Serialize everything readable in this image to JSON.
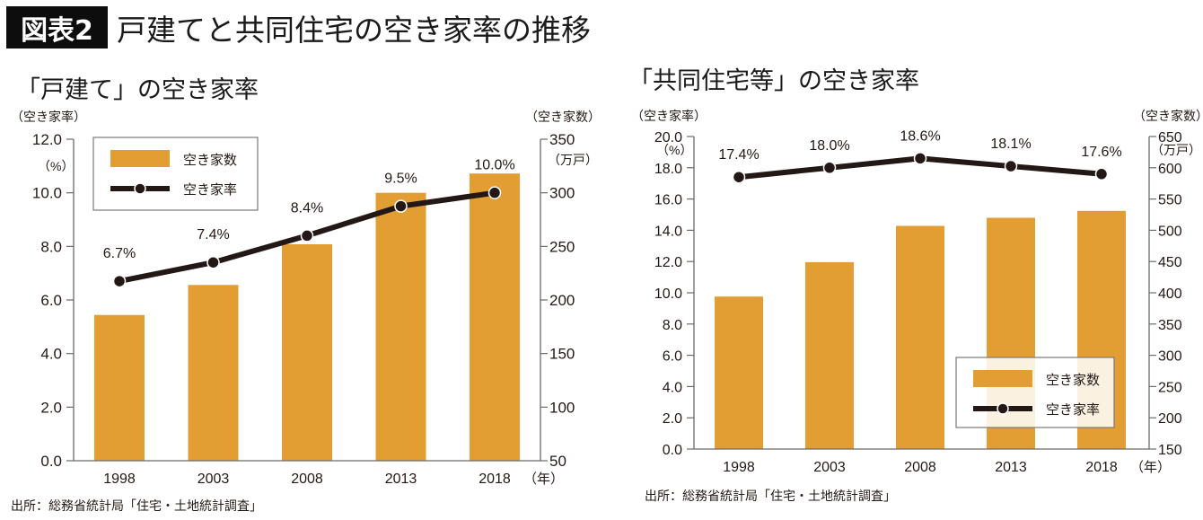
{
  "header": {
    "badge": "図表2",
    "title": "戸建てと共同住宅の空き家率の推移"
  },
  "colors": {
    "bar": "#e29e33",
    "line": "#231815",
    "axis": "#6b6b6b"
  },
  "chart_data": [
    {
      "type": "bar+line",
      "title": "「戸建て」の空き家率",
      "categories": [
        "1998",
        "2003",
        "2008",
        "2013",
        "2018"
      ],
      "xlabel_unit": "（年）",
      "left_axis": {
        "label": "（空き家率）",
        "unit": "（%）",
        "ticks": [
          "0.0",
          "2.0",
          "4.0",
          "6.0",
          "8.0",
          "10.0",
          "12.0"
        ],
        "range": [
          0,
          12
        ]
      },
      "right_axis": {
        "label": "（空き家数）",
        "unit": "（万戸）",
        "ticks": [
          "50",
          "100",
          "150",
          "200",
          "250",
          "300",
          "350"
        ],
        "range": [
          50,
          350
        ]
      },
      "series": [
        {
          "name": "空き家数",
          "type": "bar",
          "axis": "right",
          "values": [
            186,
            214,
            252,
            300,
            318
          ]
        },
        {
          "name": "空き家率",
          "type": "line",
          "axis": "left",
          "values": [
            6.7,
            7.4,
            8.4,
            9.5,
            10.0
          ],
          "labels": [
            "6.7%",
            "7.4%",
            "8.4%",
            "9.5%",
            "10.0%"
          ]
        }
      ],
      "legend": {
        "placement": "top-left",
        "items": [
          "空き家数",
          "空き家率"
        ]
      },
      "source": "出所：総務省統計局「住宅・土地統計調査」"
    },
    {
      "type": "bar+line",
      "title": "「共同住宅等」の空き家率",
      "categories": [
        "1998",
        "2003",
        "2008",
        "2013",
        "2018"
      ],
      "xlabel_unit": "（年）",
      "left_axis": {
        "label": "（空き家率）",
        "unit": "（%）",
        "ticks": [
          "0.0",
          "2.0",
          "4.0",
          "6.0",
          "8.0",
          "10.0",
          "12.0",
          "14.0",
          "16.0",
          "18.0",
          "20.0"
        ],
        "range": [
          0,
          20
        ]
      },
      "right_axis": {
        "label": "（空き家数）",
        "unit": "（万戸）",
        "ticks": [
          "150",
          "200",
          "250",
          "300",
          "350",
          "400",
          "450",
          "500",
          "550",
          "600",
          "650"
        ],
        "range": [
          150,
          650
        ]
      },
      "series": [
        {
          "name": "空き家数",
          "type": "bar",
          "axis": "right",
          "values": [
            394,
            449,
            507,
            520,
            531
          ]
        },
        {
          "name": "空き家率",
          "type": "line",
          "axis": "left",
          "values": [
            17.4,
            18.0,
            18.6,
            18.1,
            17.6
          ],
          "labels": [
            "17.4%",
            "18.0%",
            "18.6%",
            "18.1%",
            "17.6%"
          ]
        }
      ],
      "legend": {
        "placement": "bottom-right",
        "items": [
          "空き家数",
          "空き家率"
        ]
      },
      "source": "出所：総務省統計局「住宅・土地統計調査」"
    }
  ]
}
